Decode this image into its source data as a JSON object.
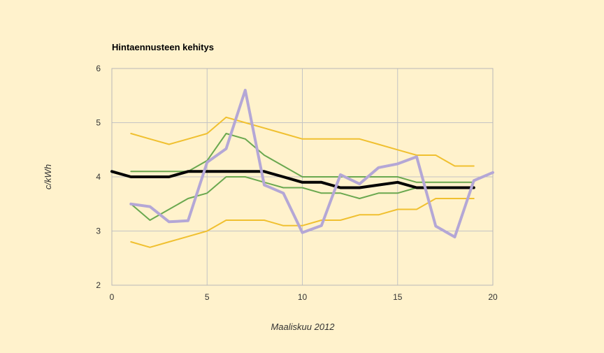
{
  "chart_data": {
    "type": "line",
    "title": "Hintaennusteen kehitys",
    "xlabel": "Maaliskuu 2012",
    "ylabel": "c/kWh",
    "xlim": [
      0,
      20
    ],
    "ylim": [
      2,
      6
    ],
    "xticks": [
      0,
      5,
      10,
      15,
      20
    ],
    "yticks": [
      2,
      3,
      4,
      5,
      6
    ],
    "grid": true,
    "legend": "none",
    "series": [
      {
        "color": "#f0c030",
        "stroke": 2,
        "points": [
          [
            1,
            4.8
          ],
          [
            2,
            4.7
          ],
          [
            3,
            4.6
          ],
          [
            4,
            4.7
          ],
          [
            5,
            4.8
          ],
          [
            6,
            5.1
          ],
          [
            7,
            5.0
          ],
          [
            8,
            4.9
          ],
          [
            9,
            4.8
          ],
          [
            10,
            4.7
          ],
          [
            11,
            4.7
          ],
          [
            12,
            4.7
          ],
          [
            13,
            4.7
          ],
          [
            14,
            4.6
          ],
          [
            15,
            4.5
          ],
          [
            16,
            4.4
          ],
          [
            17,
            4.4
          ],
          [
            18,
            4.2
          ],
          [
            19,
            4.2
          ]
        ]
      },
      {
        "color": "#f0c030",
        "stroke": 2,
        "points": [
          [
            1,
            2.8
          ],
          [
            2,
            2.7
          ],
          [
            3,
            2.8
          ],
          [
            4,
            2.9
          ],
          [
            5,
            3.0
          ],
          [
            6,
            3.2
          ],
          [
            7,
            3.2
          ],
          [
            8,
            3.2
          ],
          [
            9,
            3.1
          ],
          [
            10,
            3.1
          ],
          [
            11,
            3.2
          ],
          [
            12,
            3.2
          ],
          [
            13,
            3.3
          ],
          [
            14,
            3.3
          ],
          [
            15,
            3.4
          ],
          [
            16,
            3.4
          ],
          [
            17,
            3.6
          ],
          [
            18,
            3.6
          ],
          [
            19,
            3.6
          ]
        ]
      },
      {
        "color": "#6aa84f",
        "stroke": 2,
        "points": [
          [
            1,
            4.1
          ],
          [
            2,
            4.1
          ],
          [
            3,
            4.1
          ],
          [
            4,
            4.1
          ],
          [
            5,
            4.3
          ],
          [
            6,
            4.8
          ],
          [
            7,
            4.7
          ],
          [
            8,
            4.4
          ],
          [
            9,
            4.2
          ],
          [
            10,
            4.0
          ],
          [
            11,
            4.0
          ],
          [
            12,
            4.0
          ],
          [
            13,
            4.0
          ],
          [
            14,
            4.0
          ],
          [
            15,
            4.0
          ],
          [
            16,
            3.9
          ],
          [
            17,
            3.9
          ],
          [
            18,
            3.9
          ],
          [
            19,
            3.9
          ]
        ]
      },
      {
        "color": "#6aa84f",
        "stroke": 2,
        "points": [
          [
            1,
            3.5
          ],
          [
            2,
            3.2
          ],
          [
            3,
            3.4
          ],
          [
            4,
            3.6
          ],
          [
            5,
            3.7
          ],
          [
            6,
            4.0
          ],
          [
            7,
            4.0
          ],
          [
            8,
            3.9
          ],
          [
            9,
            3.8
          ],
          [
            10,
            3.8
          ],
          [
            11,
            3.7
          ],
          [
            12,
            3.7
          ],
          [
            13,
            3.6
          ],
          [
            14,
            3.7
          ],
          [
            15,
            3.7
          ],
          [
            16,
            3.8
          ],
          [
            17,
            3.8
          ],
          [
            18,
            3.8
          ],
          [
            19,
            3.8
          ]
        ]
      },
      {
        "color": "#000000",
        "stroke": 4,
        "points": [
          [
            0,
            4.1
          ],
          [
            1,
            4.0
          ],
          [
            2,
            4.0
          ],
          [
            3,
            4.0
          ],
          [
            4,
            4.1
          ],
          [
            5,
            4.1
          ],
          [
            6,
            4.1
          ],
          [
            7,
            4.1
          ],
          [
            8,
            4.1
          ],
          [
            9,
            4.0
          ],
          [
            10,
            3.9
          ],
          [
            11,
            3.9
          ],
          [
            12,
            3.8
          ],
          [
            13,
            3.8
          ],
          [
            14,
            3.85
          ],
          [
            15,
            3.9
          ],
          [
            16,
            3.8
          ],
          [
            17,
            3.8
          ],
          [
            18,
            3.8
          ],
          [
            19,
            3.8
          ]
        ]
      },
      {
        "color": "#b4a7d6",
        "stroke": 4,
        "points": [
          [
            1,
            3.5
          ],
          [
            2,
            3.45
          ],
          [
            3,
            3.17
          ],
          [
            4,
            3.19
          ],
          [
            5,
            4.27
          ],
          [
            6,
            4.52
          ],
          [
            7,
            5.6
          ],
          [
            8,
            3.85
          ],
          [
            9,
            3.7
          ],
          [
            10,
            2.97
          ],
          [
            11,
            3.1
          ],
          [
            12,
            4.04
          ],
          [
            13,
            3.87
          ],
          [
            14,
            4.17
          ],
          [
            15,
            4.24
          ],
          [
            16,
            4.37
          ],
          [
            17,
            3.09
          ],
          [
            18,
            2.89
          ],
          [
            19,
            3.93
          ],
          [
            20,
            4.08
          ]
        ]
      }
    ]
  }
}
